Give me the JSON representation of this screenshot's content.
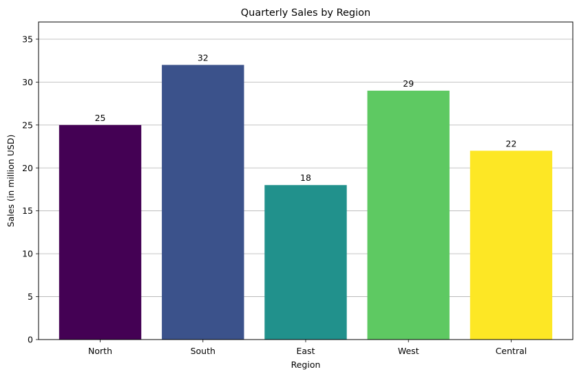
{
  "chart_data": {
    "type": "bar",
    "title": "Quarterly Sales by Region",
    "xlabel": "Region",
    "ylabel": "Sales (in million USD)",
    "categories": [
      "North",
      "South",
      "East",
      "West",
      "Central"
    ],
    "values": [
      25,
      32,
      18,
      29,
      22
    ],
    "data_labels": [
      "25",
      "32",
      "18",
      "29",
      "22"
    ],
    "colors": [
      "#440154",
      "#3b528b",
      "#21918c",
      "#5ec962",
      "#fde725"
    ],
    "ylim": [
      0,
      37
    ],
    "yticks": [
      0,
      5,
      10,
      15,
      20,
      25,
      30,
      35
    ],
    "ytick_labels": [
      "0",
      "5",
      "10",
      "15",
      "20",
      "25",
      "30",
      "35"
    ],
    "grid": "y-axis",
    "legend": "none"
  }
}
